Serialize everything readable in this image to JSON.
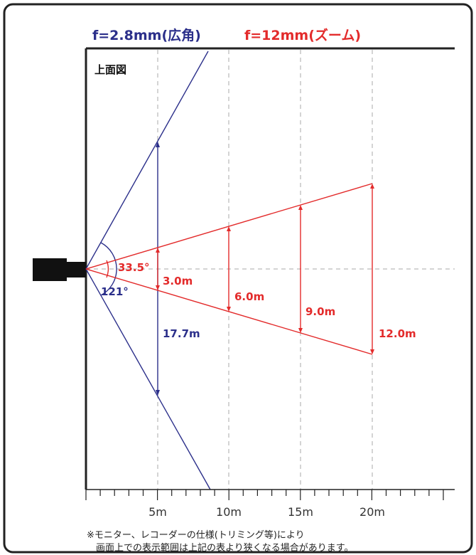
{
  "titles": {
    "wide": "f=2.8mm(広角)",
    "zoom": "f=12mm(ズーム)"
  },
  "view_label": "上面図",
  "angles": {
    "wide": "121°",
    "zoom": "33.5°"
  },
  "widths": {
    "wide_5m": "17.7m",
    "zoom_5m": "3.0m",
    "zoom_10m": "6.0m",
    "zoom_15m": "9.0m",
    "zoom_20m": "12.0m"
  },
  "x_axis": {
    "ticks": [
      "5m",
      "10m",
      "15m",
      "20m"
    ]
  },
  "note": {
    "line1": "※モニター、レコーダーの仕様(トリミング等)により",
    "line2": "画面上での表示範囲は上記の表より狭くなる場合があります。"
  },
  "colors": {
    "wide": "#2b2f8a",
    "zoom": "#e32b2b",
    "frame": "#222222",
    "grid": "#aaaaaa"
  }
}
